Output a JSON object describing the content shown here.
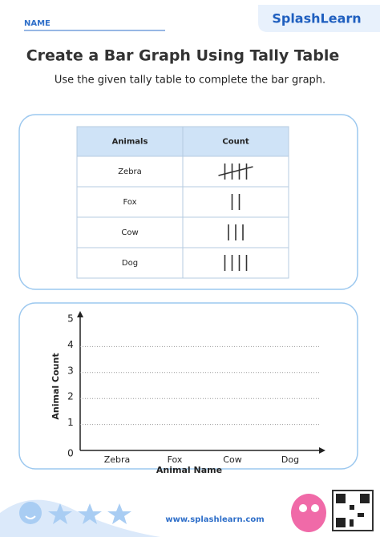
{
  "header": {
    "name_label": "NAME",
    "brand": "SplashLearn"
  },
  "title": "Create a Bar Graph Using Tally Table",
  "instructions": "Use the given tally table to complete the bar graph.",
  "table": {
    "columns": [
      "Animals",
      "Count"
    ],
    "rows": [
      {
        "animal": "Zebra",
        "tally": 5
      },
      {
        "animal": "Fox",
        "tally": 2
      },
      {
        "animal": "Cow",
        "tally": 3
      },
      {
        "animal": "Dog",
        "tally": 4
      }
    ]
  },
  "graph": {
    "y_label": "Animal Count",
    "x_label": "Animal Name",
    "categories": [
      "Zebra",
      "Fox",
      "Cow",
      "Dog"
    ],
    "ylim": [
      0,
      5
    ],
    "yticks": [
      0,
      1,
      2,
      3,
      4,
      5
    ]
  },
  "footer": {
    "url": "www.splashlearn.com"
  }
}
